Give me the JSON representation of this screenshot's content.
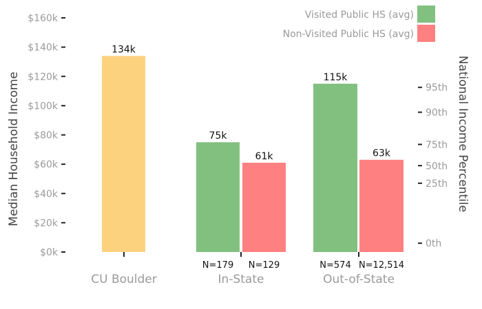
{
  "chart_data": {
    "type": "bar",
    "ylabel": "Median Household Income",
    "y2label": "National Income Percentile",
    "ylim": [
      0,
      160000
    ],
    "y_ticks": [
      "$0k",
      "$20k",
      "$40k",
      "$60k",
      "$80k",
      "$100k",
      "$120k",
      "$140k",
      "$160k"
    ],
    "y_tick_values": [
      0,
      20000,
      40000,
      60000,
      80000,
      100000,
      120000,
      140000,
      160000
    ],
    "y2_ticks": [
      {
        "label": "0th",
        "value": 6000
      },
      {
        "label": "25th",
        "value": 47000
      },
      {
        "label": "50th",
        "value": 59000
      },
      {
        "label": "75th",
        "value": 73500
      },
      {
        "label": "90th",
        "value": 95500
      },
      {
        "label": "95th",
        "value": 112500
      }
    ],
    "categories": [
      "CU Boulder",
      "In-State",
      "Out-of-State"
    ],
    "legend": {
      "position": "top-right",
      "items": [
        {
          "label": "Visited Public HS (avg)",
          "color": "#82c07f"
        },
        {
          "label": "Non-Visited Public HS (avg)",
          "color": "#ff8080"
        }
      ]
    },
    "bars": [
      {
        "category": "CU Boulder",
        "series": "total",
        "value": 134000,
        "label": "134k",
        "n": "",
        "color": "#fdd27f"
      },
      {
        "category": "In-State",
        "series": "visited",
        "value": 75000,
        "label": "75k",
        "n": "N=179",
        "color": "#82c07f"
      },
      {
        "category": "In-State",
        "series": "non-visited",
        "value": 61000,
        "label": "61k",
        "n": "N=129",
        "color": "#ff8080"
      },
      {
        "category": "Out-of-State",
        "series": "visited",
        "value": 115000,
        "label": "115k",
        "n": "N=574",
        "color": "#82c07f"
      },
      {
        "category": "Out-of-State",
        "series": "non-visited",
        "value": 63000,
        "label": "63k",
        "n": "N=12,514",
        "color": "#ff8080"
      }
    ],
    "grid": false
  }
}
